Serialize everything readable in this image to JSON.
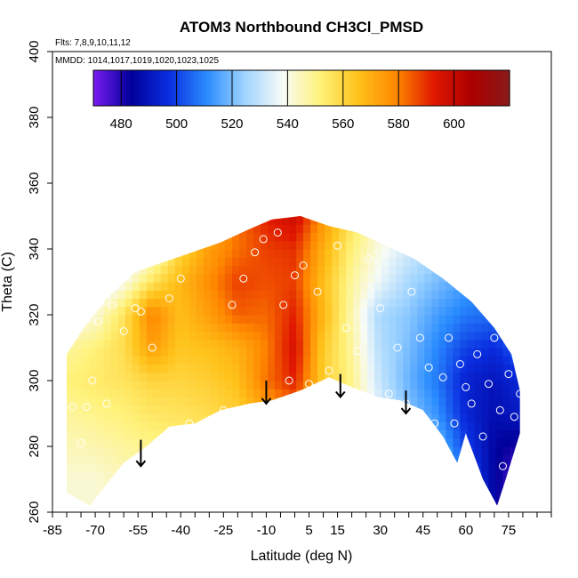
{
  "chart_data": {
    "type": "heatmap",
    "title": "ATOM3 Northbound CH3Cl_PMSD",
    "subtitle_flights": "Flts: 7,8,9,10,11,12",
    "subtitle_dates": "MMDD: 1014,1017,1019,1020,1023,1025",
    "xlabel": "Latitude (deg N)",
    "ylabel": "Theta (C)",
    "xlim": [
      -85,
      90
    ],
    "ylim": [
      260,
      400
    ],
    "x_ticks": [
      -85,
      -70,
      -55,
      -40,
      -25,
      -10,
      5,
      15,
      30,
      45,
      60,
      75
    ],
    "y_ticks": [
      260,
      280,
      300,
      320,
      340,
      360,
      380,
      400
    ],
    "colorbar": {
      "range": [
        470,
        620
      ],
      "ticks": [
        480,
        500,
        520,
        540,
        560,
        580,
        600
      ],
      "colors": [
        "#7a1cf0",
        "#00009a",
        "#0a2ee0",
        "#2a8cff",
        "#9fd4ff",
        "#f7fbf7",
        "#fff27a",
        "#ffc21a",
        "#ff8800",
        "#e01800",
        "#ac0000",
        "#8a1a1a"
      ]
    },
    "field": {
      "latitudes": [
        -80,
        -70,
        -60,
        -50,
        -40,
        -30,
        -20,
        -10,
        0,
        10,
        20,
        30,
        40,
        50,
        60,
        70,
        80
      ],
      "theta": [
        270,
        280,
        290,
        300,
        310,
        320,
        330,
        340,
        350
      ],
      "values": [
        [
          542,
          542,
          545,
          548,
          550,
          552,
          554,
          552,
          550,
          548,
          545,
          542,
          535,
          528,
          505,
          485,
          470
        ],
        [
          545,
          546,
          548,
          550,
          552,
          555,
          558,
          560,
          562,
          555,
          548,
          540,
          530,
          520,
          500,
          485,
          480
        ],
        [
          548,
          550,
          552,
          555,
          556,
          558,
          562,
          572,
          580,
          560,
          548,
          535,
          522,
          512,
          495,
          488,
          492
        ],
        [
          552,
          554,
          556,
          560,
          560,
          562,
          566,
          582,
          592,
          562,
          550,
          530,
          518,
          508,
          494,
          490,
          496
        ],
        [
          548,
          552,
          558,
          574,
          564,
          566,
          570,
          580,
          596,
          563,
          548,
          528,
          520,
          510,
          500,
          496,
          506
        ],
        [
          538,
          542,
          556,
          580,
          566,
          574,
          584,
          583,
          592,
          568,
          546,
          526,
          522,
          514,
          508,
          506,
          512
        ],
        [
          522,
          530,
          540,
          556,
          568,
          578,
          588,
          586,
          588,
          566,
          548,
          536,
          526,
          520,
          514,
          512,
          518
        ],
        [
          520,
          522,
          528,
          540,
          560,
          574,
          582,
          588,
          590,
          570,
          552,
          540,
          532,
          526,
          520,
          518,
          520
        ],
        [
          520,
          520,
          522,
          530,
          550,
          568,
          582,
          592,
          598,
          576,
          556,
          542,
          536,
          530,
          524,
          520,
          520
        ]
      ]
    },
    "coverage_bottom": [
      {
        "lat": -80,
        "theta": 266
      },
      {
        "lat": -72,
        "theta": 262
      },
      {
        "lat": -60,
        "theta": 275
      },
      {
        "lat": -52,
        "theta": 280
      },
      {
        "lat": -44,
        "theta": 286
      },
      {
        "lat": -35,
        "theta": 287
      },
      {
        "lat": -26,
        "theta": 291
      },
      {
        "lat": -16,
        "theta": 293
      },
      {
        "lat": -8,
        "theta": 294
      },
      {
        "lat": 2,
        "theta": 297
      },
      {
        "lat": 12,
        "theta": 301
      },
      {
        "lat": 20,
        "theta": 298
      },
      {
        "lat": 29,
        "theta": 295
      },
      {
        "lat": 37,
        "theta": 294
      },
      {
        "lat": 45,
        "theta": 291
      },
      {
        "lat": 52,
        "theta": 283
      },
      {
        "lat": 57,
        "theta": 275
      },
      {
        "lat": 60,
        "theta": 284
      },
      {
        "lat": 66,
        "theta": 270
      },
      {
        "lat": 71,
        "theta": 262
      },
      {
        "lat": 74,
        "theta": 270
      },
      {
        "lat": 79,
        "theta": 284
      }
    ],
    "coverage_top": [
      {
        "lat": -80,
        "theta": 308
      },
      {
        "lat": -74,
        "theta": 316
      },
      {
        "lat": -66,
        "theta": 325
      },
      {
        "lat": -56,
        "theta": 333
      },
      {
        "lat": -46,
        "theta": 336
      },
      {
        "lat": -36,
        "theta": 339
      },
      {
        "lat": -26,
        "theta": 342
      },
      {
        "lat": -16,
        "theta": 346
      },
      {
        "lat": -8,
        "theta": 349
      },
      {
        "lat": 2,
        "theta": 350
      },
      {
        "lat": 12,
        "theta": 347
      },
      {
        "lat": 22,
        "theta": 345
      },
      {
        "lat": 32,
        "theta": 341
      },
      {
        "lat": 42,
        "theta": 337
      },
      {
        "lat": 52,
        "theta": 331
      },
      {
        "lat": 62,
        "theta": 324
      },
      {
        "lat": 70,
        "theta": 316
      },
      {
        "lat": 76,
        "theta": 308
      },
      {
        "lat": 79,
        "theta": 297
      }
    ],
    "observations": [
      {
        "lat": -78,
        "theta": 292
      },
      {
        "lat": -75,
        "theta": 281
      },
      {
        "lat": -73,
        "theta": 292
      },
      {
        "lat": -71,
        "theta": 300
      },
      {
        "lat": -69,
        "theta": 318
      },
      {
        "lat": -66,
        "theta": 293
      },
      {
        "lat": -64,
        "theta": 323
      },
      {
        "lat": -60,
        "theta": 315
      },
      {
        "lat": -56,
        "theta": 322
      },
      {
        "lat": -54,
        "theta": 321
      },
      {
        "lat": -50,
        "theta": 310
      },
      {
        "lat": -44,
        "theta": 325
      },
      {
        "lat": -40,
        "theta": 331
      },
      {
        "lat": -37,
        "theta": 287
      },
      {
        "lat": -30,
        "theta": 287
      },
      {
        "lat": -25,
        "theta": 291
      },
      {
        "lat": -22,
        "theta": 323
      },
      {
        "lat": -18,
        "theta": 331
      },
      {
        "lat": -14,
        "theta": 339
      },
      {
        "lat": -11,
        "theta": 343
      },
      {
        "lat": -6,
        "theta": 345
      },
      {
        "lat": -4,
        "theta": 323
      },
      {
        "lat": -2,
        "theta": 300
      },
      {
        "lat": 0,
        "theta": 332
      },
      {
        "lat": 3,
        "theta": 335
      },
      {
        "lat": 5,
        "theta": 299
      },
      {
        "lat": 8,
        "theta": 327
      },
      {
        "lat": 12,
        "theta": 303
      },
      {
        "lat": 15,
        "theta": 341
      },
      {
        "lat": 18,
        "theta": 316
      },
      {
        "lat": 22,
        "theta": 309
      },
      {
        "lat": 26,
        "theta": 337
      },
      {
        "lat": 30,
        "theta": 322
      },
      {
        "lat": 33,
        "theta": 296
      },
      {
        "lat": 36,
        "theta": 310
      },
      {
        "lat": 39,
        "theta": 293
      },
      {
        "lat": 41,
        "theta": 327
      },
      {
        "lat": 44,
        "theta": 313
      },
      {
        "lat": 47,
        "theta": 304
      },
      {
        "lat": 49,
        "theta": 287
      },
      {
        "lat": 52,
        "theta": 301
      },
      {
        "lat": 54,
        "theta": 313
      },
      {
        "lat": 56,
        "theta": 287
      },
      {
        "lat": 58,
        "theta": 305
      },
      {
        "lat": 60,
        "theta": 298
      },
      {
        "lat": 62,
        "theta": 293
      },
      {
        "lat": 64,
        "theta": 308
      },
      {
        "lat": 66,
        "theta": 283
      },
      {
        "lat": 68,
        "theta": 299
      },
      {
        "lat": 70,
        "theta": 313
      },
      {
        "lat": 72,
        "theta": 291
      },
      {
        "lat": 73,
        "theta": 274
      },
      {
        "lat": 75,
        "theta": 302
      },
      {
        "lat": 77,
        "theta": 289
      },
      {
        "lat": 79,
        "theta": 296
      }
    ],
    "arrows": [
      {
        "lat": -54,
        "theta_top": 282,
        "theta_bottom": 274
      },
      {
        "lat": -10,
        "theta_top": 300,
        "theta_bottom": 293
      },
      {
        "lat": 16,
        "theta_top": 302,
        "theta_bottom": 295
      },
      {
        "lat": 39,
        "theta_top": 297,
        "theta_bottom": 290
      }
    ]
  }
}
